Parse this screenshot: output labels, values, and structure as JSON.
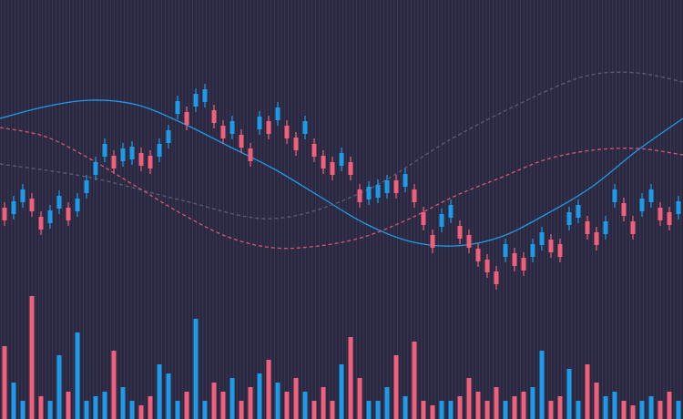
{
  "chart_data": {
    "type": "candlestick",
    "background": "#2a2840",
    "up_color": "#1e9be8",
    "down_color": "#f0607a",
    "xlim": [
      -0.5,
      74.5
    ],
    "ylim": [
      0,
      460
    ],
    "volume_ylim": [
      0,
      460
    ],
    "open": [
      232,
      225,
      238,
      242,
      222,
      215,
      231,
      232,
      228,
      248,
      268,
      288,
      289,
      283,
      285,
      292,
      289,
      288,
      303,
      335,
      337,
      343,
      348,
      339,
      322,
      313,
      312,
      297,
      318,
      327,
      328,
      322,
      309,
      313,
      302,
      289,
      282,
      278,
      282,
      252,
      241,
      243,
      248,
      262,
      255,
      252,
      227,
      202,
      211,
      221,
      212,
      202,
      187,
      175,
      162,
      178,
      182,
      177,
      178,
      191,
      197,
      192,
      213,
      221,
      217,
      205,
      203,
      238,
      237,
      217,
      228,
      238,
      232,
      227,
      225
    ],
    "high": [
      238,
      245,
      258,
      248,
      228,
      235,
      251,
      238,
      248,
      268,
      288,
      308,
      295,
      303,
      305,
      298,
      295,
      308,
      323,
      355,
      343,
      363,
      368,
      345,
      328,
      333,
      318,
      303,
      338,
      333,
      348,
      328,
      315,
      333,
      308,
      295,
      288,
      298,
      288,
      258,
      261,
      263,
      268,
      268,
      275,
      258,
      233,
      208,
      231,
      241,
      218,
      208,
      193,
      181,
      168,
      198,
      188,
      183,
      198,
      211,
      203,
      198,
      233,
      241,
      223,
      211,
      223,
      258,
      243,
      223,
      248,
      258,
      238,
      233,
      245
    ],
    "low": [
      212,
      219,
      232,
      222,
      202,
      209,
      225,
      212,
      222,
      242,
      262,
      282,
      269,
      277,
      279,
      272,
      269,
      282,
      297,
      329,
      317,
      337,
      342,
      319,
      302,
      307,
      292,
      277,
      312,
      307,
      322,
      302,
      289,
      307,
      282,
      269,
      262,
      272,
      262,
      232,
      235,
      237,
      242,
      242,
      249,
      232,
      207,
      182,
      205,
      215,
      192,
      182,
      167,
      155,
      142,
      172,
      162,
      157,
      172,
      185,
      177,
      172,
      207,
      215,
      197,
      185,
      197,
      232,
      217,
      197,
      222,
      232,
      212,
      207,
      219
    ],
    "close": [
      218,
      239,
      252,
      228,
      208,
      229,
      245,
      218,
      242,
      262,
      282,
      302,
      275,
      297,
      299,
      278,
      275,
      302,
      317,
      349,
      323,
      357,
      362,
      325,
      308,
      327,
      298,
      283,
      332,
      313,
      342,
      308,
      295,
      327,
      288,
      275,
      268,
      292,
      268,
      238,
      255,
      257,
      262,
      248,
      269,
      238,
      213,
      188,
      225,
      235,
      198,
      188,
      173,
      161,
      148,
      192,
      168,
      163,
      192,
      205,
      183,
      178,
      227,
      235,
      203,
      191,
      217,
      252,
      223,
      203,
      242,
      252,
      218,
      213,
      239
    ],
    "volume": [
      80,
      40,
      20,
      135,
      25,
      20,
      70,
      30,
      95,
      20,
      25,
      30,
      75,
      35,
      20,
      15,
      25,
      60,
      50,
      20,
      30,
      110,
      20,
      40,
      30,
      45,
      20,
      35,
      50,
      65,
      40,
      30,
      45,
      30,
      20,
      35,
      20,
      60,
      90,
      45,
      20,
      20,
      35,
      70,
      25,
      85,
      20,
      15,
      20,
      20,
      25,
      45,
      30,
      20,
      35,
      20,
      25,
      30,
      35,
      75,
      20,
      25,
      55,
      20,
      60,
      40,
      25,
      30,
      20,
      15,
      20,
      25,
      20,
      30,
      20
    ],
    "lines": [
      {
        "color": "#1e9be8",
        "dashed": false,
        "opacity": 1,
        "x": [
          -0.5,
          4.5,
          9.5,
          14.5,
          19.5,
          24.5,
          29.5,
          34.5,
          39.5,
          44.5,
          49.5,
          54.5,
          59.5,
          64.5,
          69.5,
          74.5
        ],
        "values": [
          330,
          343,
          350,
          345,
          325,
          300,
          275,
          245,
          215,
          195,
          190,
          200,
          225,
          255,
          295,
          330
        ]
      },
      {
        "color": "#f0607a",
        "dashed": true,
        "opacity": 0.85,
        "x": [
          -0.5,
          4.5,
          9.5,
          14.5,
          19.5,
          24.5,
          29.5,
          34.5,
          39.5,
          44.5,
          49.5,
          54.5,
          59.5,
          64.5,
          69.5,
          74.5
        ],
        "values": [
          320,
          310,
          285,
          255,
          225,
          200,
          188,
          190,
          200,
          220,
          245,
          265,
          285,
          295,
          297,
          290
        ]
      },
      {
        "color": "#6a6680",
        "dashed": true,
        "opacity": 0.8,
        "x": [
          -0.5,
          9.5,
          19.5,
          29.5,
          39.5,
          49.5,
          59.5,
          64.5,
          69.5,
          74.5
        ],
        "values": [
          280,
          265,
          240,
          220,
          250,
          310,
          360,
          378,
          380,
          370
        ]
      }
    ]
  }
}
